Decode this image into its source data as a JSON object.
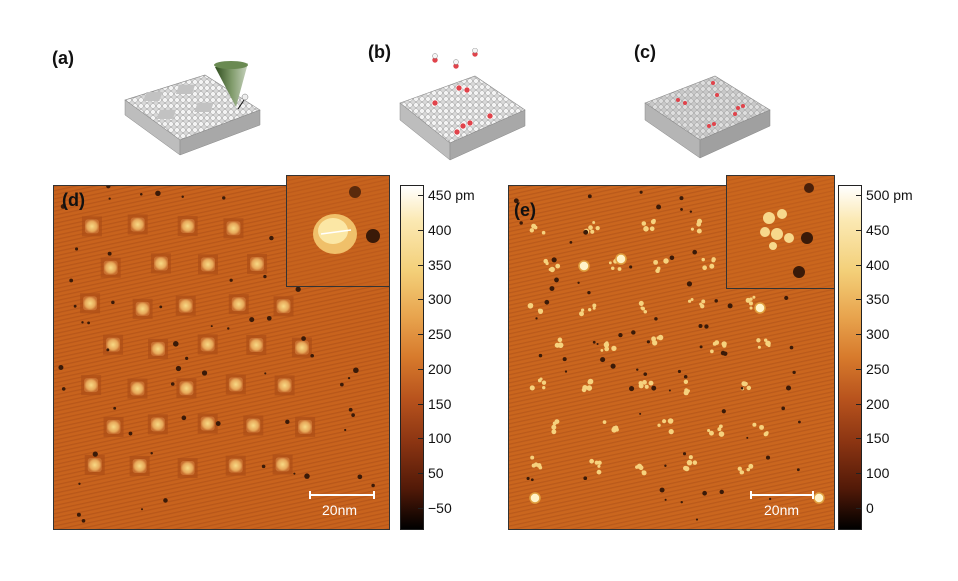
{
  "panels": {
    "a": {
      "label": "(a)"
    },
    "b": {
      "label": "(b)"
    },
    "c": {
      "label": "(c)"
    },
    "d": {
      "label": "(d)",
      "scale_bar": "20nm",
      "colorbar": {
        "ticks": [
          "450 pm",
          "400",
          "350",
          "300",
          "250",
          "200",
          "150",
          "100",
          "50",
          "−50"
        ]
      }
    },
    "e": {
      "label": "(e)",
      "scale_bar": "20nm",
      "colorbar": {
        "ticks": [
          "500 pm",
          "450",
          "400",
          "350",
          "300",
          "250",
          "200",
          "150",
          "100",
          "0"
        ]
      }
    }
  },
  "colors": {
    "substrate": "#c9651c",
    "feature": "#f4d27a",
    "pit": "#3a1a08",
    "adsorbate": "#e0434b"
  }
}
